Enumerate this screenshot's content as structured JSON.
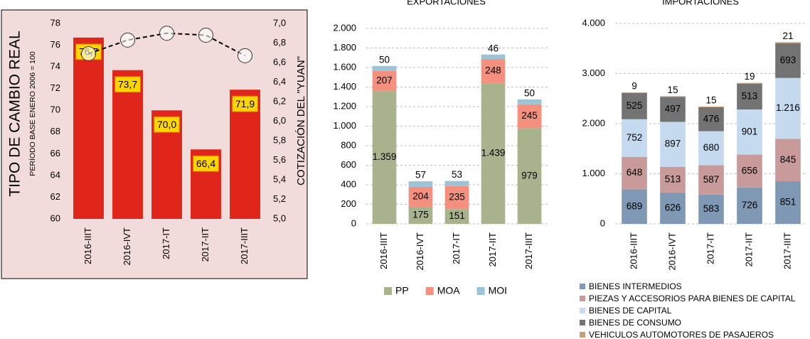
{
  "chart_data": [
    {
      "type": "bar",
      "y_label": "TIPO DE CAMBIO REAL",
      "y_sublabel": "PERÍODO BASE ENERO 2006 = 100",
      "y2_label": "COTIZACIÓN DEL \"YUAN\"",
      "categories": [
        "2016-IIIT",
        "2016-IVT",
        "2017-IT",
        "2017-IIT",
        "2017-IIIT"
      ],
      "series": [
        {
          "color": "#e0261b",
          "values": [
            76.7,
            73.7,
            70.0,
            66.4,
            71.9
          ],
          "value_labels": [
            "76,7",
            "73,7",
            "70,0",
            "66,4",
            "71,9"
          ]
        },
        {
          "type": "line",
          "axis": "y2",
          "color": "#000000",
          "values": [
            6.69,
            6.83,
            6.9,
            6.88,
            6.67
          ]
        }
      ],
      "ylim": [
        60,
        78
      ],
      "yticks": [
        60,
        62,
        64,
        66,
        68,
        70,
        72,
        74,
        76,
        78
      ],
      "y2lim": [
        5,
        7
      ],
      "y2ticks": [
        {
          "value": 5,
          "label": "5,0"
        },
        {
          "value": 5.2,
          "label": "5,2"
        },
        {
          "value": 5.4,
          "label": "5,4"
        },
        {
          "value": 5.6,
          "label": "5,6"
        },
        {
          "value": 5.8,
          "label": "5,8"
        },
        {
          "value": 6,
          "label": "6,0"
        },
        {
          "value": 6.2,
          "label": "6,2"
        },
        {
          "value": 6.4,
          "label": "6,4"
        },
        {
          "value": 6.6,
          "label": "6,6"
        },
        {
          "value": 6.8,
          "label": "6,8"
        },
        {
          "value": 7,
          "label": "7,0"
        }
      ],
      "grid": false
    },
    {
      "type": "stacked_bar",
      "title": "EXPORTACIONES",
      "categories": [
        "2016-IIIT",
        "2016-IVT",
        "2017-IT",
        "2017-IIT",
        "2017-IIIT"
      ],
      "series": [
        {
          "name": "PP",
          "color": "#a8b38e",
          "values": [
            1359,
            175,
            151,
            1439,
            979
          ],
          "value_labels": [
            "1.359",
            "175",
            "151",
            "1.439",
            "979"
          ]
        },
        {
          "name": "MOA",
          "color": "#f5907f",
          "values": [
            207,
            204,
            235,
            248,
            245
          ]
        },
        {
          "name": "MOI",
          "color": "#9dc4d6",
          "values": [
            50,
            57,
            53,
            46,
            50
          ]
        }
      ],
      "ylim": [
        0,
        2000
      ],
      "yticks": [
        0,
        200,
        400,
        600,
        800,
        {
          "value": 1000,
          "label": "1.000"
        },
        {
          "value": 1200,
          "label": "1.200"
        },
        {
          "value": 1400,
          "label": "1.400"
        },
        {
          "value": 1600,
          "label": "1.600"
        },
        {
          "value": 1800,
          "label": "1.800"
        },
        {
          "value": 2000,
          "label": "2.000"
        }
      ],
      "grid": true,
      "legend": "bottom"
    },
    {
      "type": "stacked_bar",
      "title": "IMPORTACIONES",
      "categories": [
        "2016-IIIT",
        "2016-IVT",
        "2017-IT",
        "2017-IIT",
        "2017-IIIT"
      ],
      "series": [
        {
          "name": "BIENES INTERMEDIOS",
          "color": "#7f98b3",
          "values": [
            689,
            626,
            583,
            726,
            851
          ]
        },
        {
          "name": "PIEZAS Y ACCESORIOS PARA BIENES DE CAPITAL",
          "color": "#c99a9a",
          "values": [
            648,
            513,
            587,
            656,
            845
          ]
        },
        {
          "name": "BIENES DE CAPITAL",
          "color": "#c6daef",
          "values": [
            752,
            897,
            680,
            901,
            1216
          ],
          "value_labels": [
            "752",
            "897",
            "680",
            "901",
            "1.216"
          ]
        },
        {
          "name": "BIENES DE CONSUMO",
          "color": "#737373",
          "values": [
            525,
            497,
            476,
            513,
            693
          ]
        },
        {
          "name": "VEHICULOS AUTOMOTORES DE PASAJEROS",
          "color": "#c79d7b",
          "values": [
            9,
            15,
            15,
            19,
            21
          ]
        }
      ],
      "ylim": [
        0,
        4000
      ],
      "yticks": [
        0,
        {
          "value": 1000,
          "label": "1.000"
        },
        {
          "value": 2000,
          "label": "2.000"
        },
        {
          "value": 3000,
          "label": "3.000"
        },
        {
          "value": 4000,
          "label": "4.000"
        }
      ],
      "grid": true,
      "legend": "bottom"
    }
  ]
}
